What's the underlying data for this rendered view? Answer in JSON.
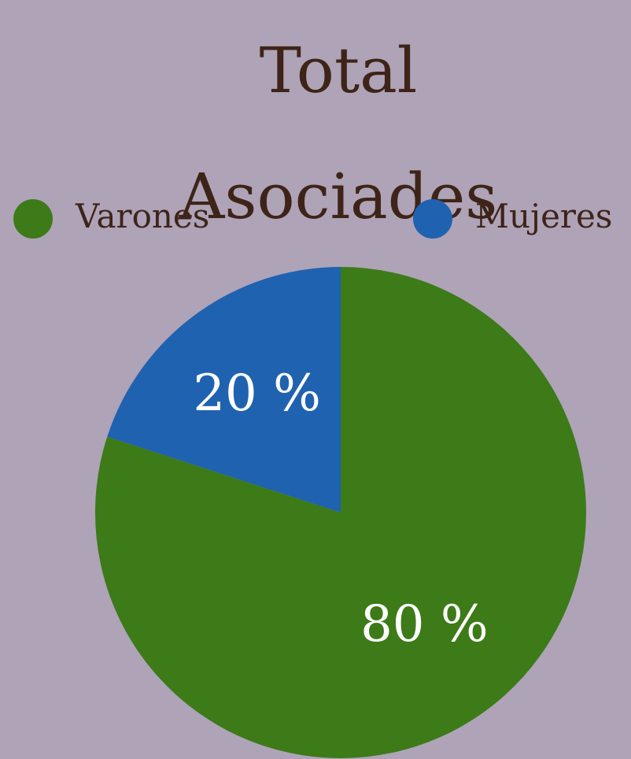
{
  "chart_data": {
    "type": "pie",
    "title": "Total Asociades",
    "series": [
      {
        "name": "Varones",
        "color": "#3d7a18",
        "values": [
          80
        ],
        "value_labels": [
          "80 %"
        ]
      },
      {
        "name": "Mujeres",
        "color": "#1f62b0",
        "values": [
          20
        ],
        "value_labels": [
          "20 %"
        ]
      }
    ]
  }
}
